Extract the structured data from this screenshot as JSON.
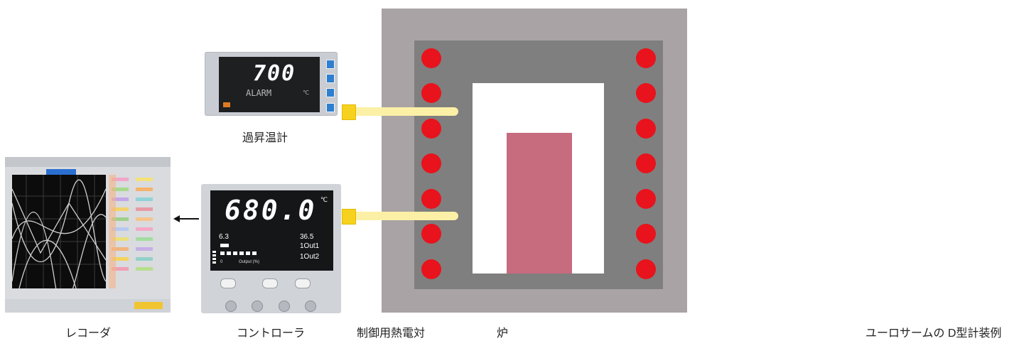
{
  "labels": {
    "recorder": "レコーダ",
    "controller": "コントローラ",
    "control_tc": "制御用熱電対",
    "furnace": "炉",
    "over_temp_meter": "過昇温計",
    "caption": "ユーロサームの D型計装例"
  },
  "over_temp_meter": {
    "display_value": "700",
    "display_text": "ALARM",
    "unit": "℃"
  },
  "controller": {
    "display_value": "680.0",
    "unit": "℃",
    "sub_left": "6.3",
    "sub_right": "36.5",
    "line_1": "1Out1",
    "line_2": "1Out2",
    "output_label": "Output (%)",
    "output_zero": "0"
  },
  "colors": {
    "furnace_outer": "#a9a3a5",
    "furnace_wall": "#7f7f7f",
    "heater": "#e8131c",
    "load": "#c76b7f",
    "thermocouple_head": "#f6d21f"
  }
}
